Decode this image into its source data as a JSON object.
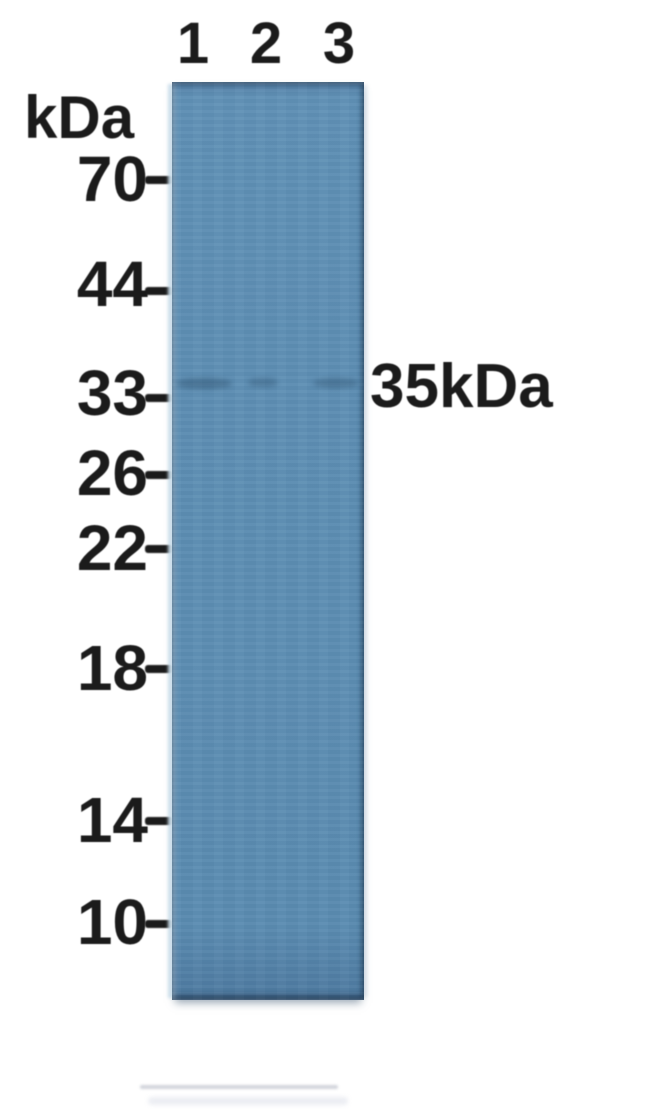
{
  "figure": {
    "type": "western-blot",
    "unit_label": "kDa",
    "lane_labels": [
      "1",
      "2",
      "3"
    ],
    "markers": [
      "70",
      "44",
      "33",
      "26",
      "22",
      "18",
      "14",
      "10"
    ],
    "band_annotation": "35kDa",
    "bands": [
      {
        "lane": "1",
        "kda": 35
      },
      {
        "lane": "2",
        "kda": 35
      },
      {
        "lane": "3",
        "kda": 35
      }
    ],
    "colors": {
      "membrane": "#5f90b5",
      "membrane_edge": "#49749a",
      "band": "rgba(25,55,85,0.32)",
      "text": "#1b1b1b",
      "background": "#ffffff"
    }
  }
}
